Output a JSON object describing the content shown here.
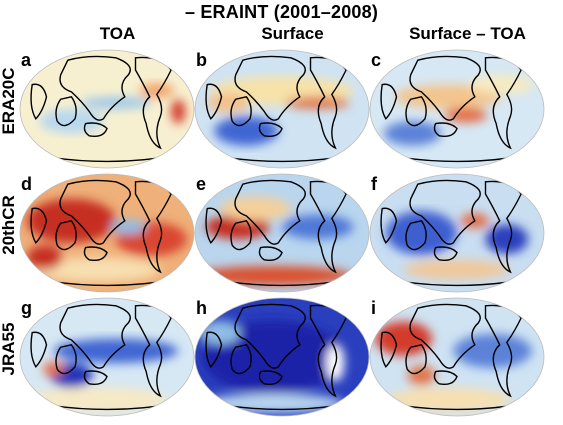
{
  "figure": {
    "title": "– ERAINT (2001–2008)",
    "columns": [
      "TOA",
      "Surface",
      "Surface – TOA"
    ],
    "rows": [
      "ERA20C",
      "20thCR",
      "JRA55"
    ],
    "panels": [
      {
        "letter": "a",
        "row": 0,
        "col": 0,
        "base": "#f7f0d0",
        "blobs": [
          [
            "#f2a36a",
            0.78,
            0.35,
            0.1,
            0.06
          ],
          [
            "#b8d8ef",
            0.3,
            0.6,
            0.18,
            0.1
          ],
          [
            "#d33a2a",
            0.9,
            0.52,
            0.04,
            0.1
          ],
          [
            "#9fc8ea",
            0.55,
            0.45,
            0.2,
            0.05
          ]
        ]
      },
      {
        "letter": "b",
        "row": 0,
        "col": 1,
        "base": "#cfe3f3",
        "blobs": [
          [
            "#f7e2a8",
            0.5,
            0.35,
            0.4,
            0.12
          ],
          [
            "#e0764a",
            0.7,
            0.45,
            0.18,
            0.05
          ],
          [
            "#3f66d3",
            0.3,
            0.68,
            0.18,
            0.12
          ],
          [
            "#f2c08a",
            0.2,
            0.45,
            0.12,
            0.08
          ]
        ]
      },
      {
        "letter": "c",
        "row": 0,
        "col": 2,
        "base": "#d6e8f4",
        "blobs": [
          [
            "#f3c48d",
            0.45,
            0.4,
            0.3,
            0.1
          ],
          [
            "#e26b45",
            0.55,
            0.55,
            0.12,
            0.06
          ],
          [
            "#5b82d8",
            0.25,
            0.7,
            0.16,
            0.1
          ],
          [
            "#f7eac0",
            0.75,
            0.3,
            0.18,
            0.08
          ]
        ]
      },
      {
        "letter": "d",
        "row": 1,
        "col": 0,
        "base": "#efb07a",
        "blobs": [
          [
            "#c62d24",
            0.3,
            0.4,
            0.25,
            0.18
          ],
          [
            "#d94633",
            0.75,
            0.55,
            0.2,
            0.14
          ],
          [
            "#8fbde6",
            0.62,
            0.45,
            0.1,
            0.06
          ],
          [
            "#f7dfb0",
            0.45,
            0.8,
            0.35,
            0.1
          ],
          [
            "#c62d24",
            0.15,
            0.7,
            0.1,
            0.1
          ]
        ]
      },
      {
        "letter": "e",
        "row": 1,
        "col": 1,
        "base": "#b9d6ee",
        "blobs": [
          [
            "#d9512f",
            0.45,
            0.85,
            0.45,
            0.08
          ],
          [
            "#c62d24",
            0.25,
            0.45,
            0.18,
            0.1
          ],
          [
            "#4f78d8",
            0.7,
            0.45,
            0.2,
            0.1
          ],
          [
            "#f4cf9a",
            0.35,
            0.3,
            0.2,
            0.1
          ]
        ]
      },
      {
        "letter": "f",
        "row": 1,
        "col": 2,
        "base": "#c9def1",
        "blobs": [
          [
            "#3c5fd0",
            0.3,
            0.5,
            0.2,
            0.18
          ],
          [
            "#2a3fbe",
            0.78,
            0.55,
            0.12,
            0.12
          ],
          [
            "#f0c79a",
            0.5,
            0.8,
            0.3,
            0.08
          ],
          [
            "#e26b45",
            0.6,
            0.4,
            0.08,
            0.06
          ]
        ]
      },
      {
        "letter": "g",
        "row": 2,
        "col": 0,
        "base": "#d6e8f4",
        "blobs": [
          [
            "#3f66d3",
            0.55,
            0.45,
            0.35,
            0.1
          ],
          [
            "#2034b8",
            0.3,
            0.65,
            0.12,
            0.1
          ],
          [
            "#f7e9c4",
            0.45,
            0.85,
            0.4,
            0.1
          ],
          [
            "#e26b45",
            0.2,
            0.6,
            0.06,
            0.06
          ]
        ]
      },
      {
        "letter": "h",
        "row": 2,
        "col": 1,
        "base": "#2a3fbe",
        "blobs": [
          [
            "#1a22a8",
            0.45,
            0.5,
            0.4,
            0.3
          ],
          [
            "#b9d6ee",
            0.45,
            0.88,
            0.4,
            0.08
          ],
          [
            "#8fbde6",
            0.15,
            0.3,
            0.12,
            0.1
          ],
          [
            "#ffffff",
            0.8,
            0.55,
            0.05,
            0.15
          ]
        ]
      },
      {
        "letter": "i",
        "row": 2,
        "col": 2,
        "base": "#cfe3f3",
        "blobs": [
          [
            "#d33a2a",
            0.2,
            0.35,
            0.16,
            0.14
          ],
          [
            "#e0764a",
            0.3,
            0.65,
            0.08,
            0.08
          ],
          [
            "#5b82d8",
            0.7,
            0.45,
            0.22,
            0.14
          ],
          [
            "#f7dfb0",
            0.45,
            0.85,
            0.35,
            0.1
          ]
        ]
      }
    ]
  }
}
